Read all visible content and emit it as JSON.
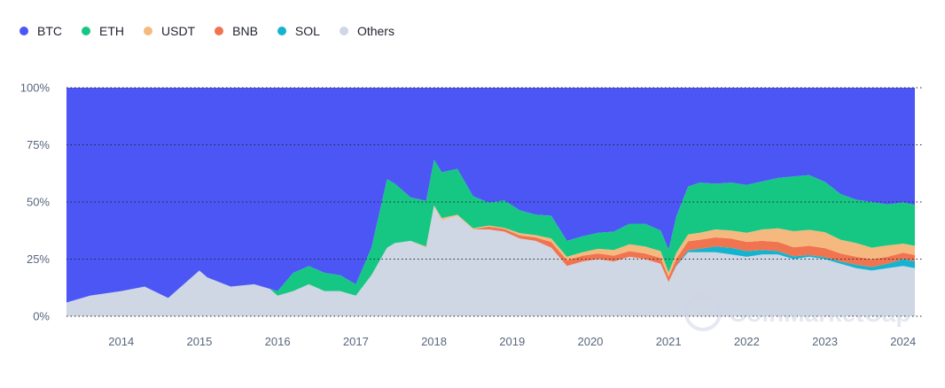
{
  "legend": [
    {
      "label": "BTC",
      "color": "#4b56f5"
    },
    {
      "label": "ETH",
      "color": "#16c784"
    },
    {
      "label": "USDT",
      "color": "#f5b97f"
    },
    {
      "label": "BNB",
      "color": "#f0744f"
    },
    {
      "label": "SOL",
      "color": "#14b4d0"
    },
    {
      "label": "Others",
      "color": "#cfd6e4"
    }
  ],
  "watermark": "CoinMarketCap",
  "chart_data": {
    "type": "area",
    "stacked": true,
    "stack_order_bottom_to_top": [
      "Others",
      "SOL",
      "BNB",
      "USDT",
      "ETH",
      "BTC"
    ],
    "x": [
      2013.3,
      2013.6,
      2014.0,
      2014.3,
      2014.6,
      2015.0,
      2015.1,
      2015.4,
      2015.7,
      2015.9,
      2016.0,
      2016.2,
      2016.4,
      2016.6,
      2016.8,
      2017.0,
      2017.2,
      2017.4,
      2017.5,
      2017.7,
      2017.9,
      2018.0,
      2018.1,
      2018.3,
      2018.5,
      2018.7,
      2018.9,
      2019.1,
      2019.3,
      2019.5,
      2019.7,
      2019.9,
      2020.1,
      2020.3,
      2020.5,
      2020.7,
      2020.9,
      2021.0,
      2021.1,
      2021.25,
      2021.4,
      2021.6,
      2021.8,
      2022.0,
      2022.2,
      2022.4,
      2022.6,
      2022.8,
      2023.0,
      2023.2,
      2023.4,
      2023.6,
      2023.8,
      2024.0,
      2024.15
    ],
    "series": [
      {
        "name": "Others",
        "values": [
          6,
          9,
          11,
          13,
          8,
          20,
          17,
          13,
          14,
          12,
          9,
          11,
          14,
          11,
          11,
          9,
          18,
          30,
          32,
          33,
          30,
          48,
          42,
          44,
          38,
          38,
          37,
          34,
          33,
          30,
          22,
          24,
          25,
          24,
          26,
          25,
          23,
          15,
          22,
          28,
          28,
          28,
          27,
          26,
          27,
          27,
          25,
          26,
          25,
          23,
          21,
          20,
          21,
          22,
          21
        ]
      },
      {
        "name": "SOL",
        "values": [
          0,
          0,
          0,
          0,
          0,
          0,
          0,
          0,
          0,
          0,
          0,
          0,
          0,
          0,
          0,
          0,
          0,
          0,
          0,
          0,
          0,
          0,
          0,
          0,
          0,
          0,
          0,
          0,
          0,
          0,
          0,
          0,
          0,
          0,
          0,
          0,
          0,
          0,
          0.3,
          0.8,
          1.5,
          2.5,
          3,
          2.5,
          2,
          1.5,
          1.2,
          0.8,
          0.8,
          1,
          1.5,
          1.5,
          2,
          3,
          3
        ]
      },
      {
        "name": "BNB",
        "values": [
          0,
          0,
          0,
          0,
          0,
          0,
          0,
          0,
          0,
          0,
          0,
          0,
          0,
          0,
          0,
          0,
          0,
          0,
          0,
          0,
          0,
          0,
          0,
          0,
          0,
          1.2,
          1.2,
          1.3,
          1.5,
          2.5,
          2.5,
          2.5,
          2.5,
          2.5,
          2.5,
          2.5,
          2.5,
          2.2,
          3,
          4,
          4,
          4,
          4,
          4,
          4,
          4,
          4,
          4,
          4,
          3.5,
          3.5,
          3.5,
          3,
          2.8,
          2.8
        ]
      },
      {
        "name": "USDT",
        "values": [
          0,
          0,
          0,
          0,
          0,
          0,
          0,
          0,
          0,
          0,
          0,
          0,
          0,
          0,
          0,
          0,
          0,
          0,
          0,
          0,
          0.5,
          0.5,
          1,
          0.5,
          0.5,
          0.5,
          0.5,
          1,
          1,
          1.5,
          1.5,
          1.5,
          2,
          2.5,
          3,
          3,
          3,
          2,
          2.5,
          3,
          3,
          3.5,
          3.5,
          4,
          5,
          6,
          7,
          7,
          7,
          6,
          6,
          5,
          5,
          4,
          4
        ]
      },
      {
        "name": "ETH",
        "values": [
          0,
          0,
          0,
          0,
          0,
          0,
          0,
          0,
          0,
          0,
          2,
          8,
          8,
          8,
          7,
          5,
          12,
          30,
          26,
          19,
          20,
          20,
          20,
          20,
          14,
          10,
          12,
          10,
          9,
          10,
          7,
          7,
          7,
          8,
          9,
          10,
          9,
          10,
          16,
          21,
          22,
          20,
          21,
          21,
          21,
          22,
          24,
          24,
          22,
          20,
          19,
          20,
          18,
          18,
          18
        ]
      },
      {
        "name": "BTC",
        "values": [
          94,
          91,
          89,
          87,
          92,
          80,
          83,
          87,
          86,
          88,
          89,
          81,
          78,
          81,
          82,
          86,
          70,
          40,
          42,
          48,
          49.5,
          31.5,
          37,
          35.5,
          47.5,
          50.3,
          49.3,
          53.7,
          55.5,
          56,
          67,
          65,
          63.5,
          63,
          59.5,
          59.5,
          62.5,
          70.8,
          56.2,
          43.2,
          41.5,
          42,
          41.5,
          42.5,
          41,
          39.5,
          38.8,
          38.2,
          41.2,
          46.5,
          49,
          50,
          51,
          50.2,
          51.2
        ]
      }
    ],
    "xlim": [
      2013.3,
      2024.15
    ],
    "ylim": [
      0,
      100
    ],
    "x_ticks": [
      "2014",
      "2015",
      "2016",
      "2017",
      "2018",
      "2019",
      "2020",
      "2021",
      "2022",
      "2023",
      "2024"
    ],
    "y_ticks": [
      "0%",
      "25%",
      "50%",
      "75%",
      "100%"
    ],
    "grid": "horizontal-dotted",
    "legend_position": "top-left"
  }
}
